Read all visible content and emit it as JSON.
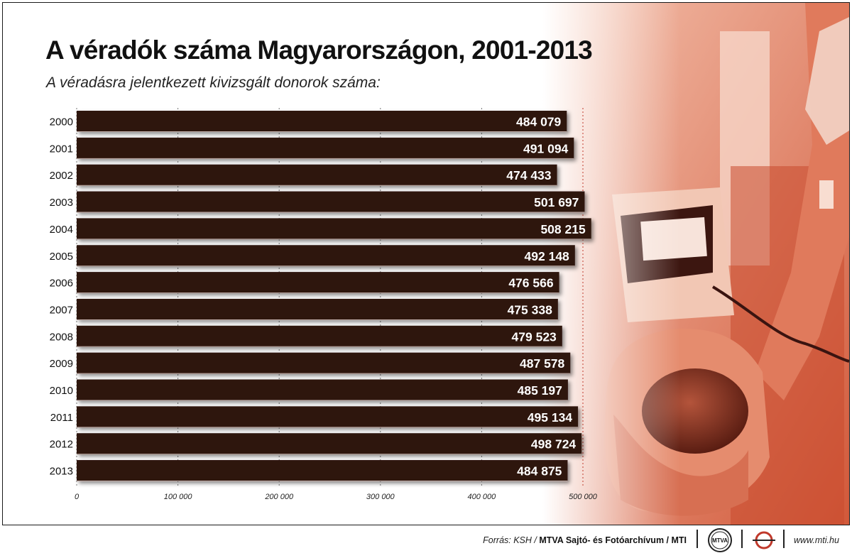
{
  "title": "A véradók száma Magyarországon, 2001-2013",
  "subtitle": "A véradásra jelentkezett kivizsgált donorok száma:",
  "chart_data": {
    "type": "bar",
    "orientation": "horizontal",
    "title": "A véradók száma Magyarországon, 2001-2013",
    "subtitle": "A véradásra jelentkezett kivizsgált donorok száma:",
    "categories": [
      "2000",
      "2001",
      "2002",
      "2003",
      "2004",
      "2005",
      "2006",
      "2007",
      "2008",
      "2009",
      "2010",
      "2011",
      "2012",
      "2013"
    ],
    "values": [
      484079,
      491094,
      474433,
      501697,
      508215,
      492148,
      476566,
      475338,
      479523,
      487578,
      485197,
      495134,
      498724,
      484875
    ],
    "value_labels": [
      "484 079",
      "491 094",
      "474 433",
      "501 697",
      "508 215",
      "492 148",
      "476 566",
      "475 338",
      "479 523",
      "487 578",
      "485 197",
      "495 134",
      "498 724",
      "484 875"
    ],
    "xlim": [
      0,
      500000
    ],
    "xticks": [
      0,
      100000,
      200000,
      300000,
      400000,
      500000
    ],
    "xtick_labels": [
      "0",
      "100 000",
      "200 000",
      "300 000",
      "400 000",
      "500 000"
    ],
    "grid": true,
    "bar_color": "#2f1210",
    "reference_line_color": "#c0392b"
  },
  "footer": {
    "source_prefix": "Forrás: KSH / ",
    "source_bold": "MTVA Sajtó- és Fotóarchívum / MTI",
    "mtva_logo_text": "MTVA",
    "url": "www.mti.hu"
  },
  "colors": {
    "bar": "#2f1210",
    "photo_tint": "#d9684a",
    "text": "#111111"
  }
}
